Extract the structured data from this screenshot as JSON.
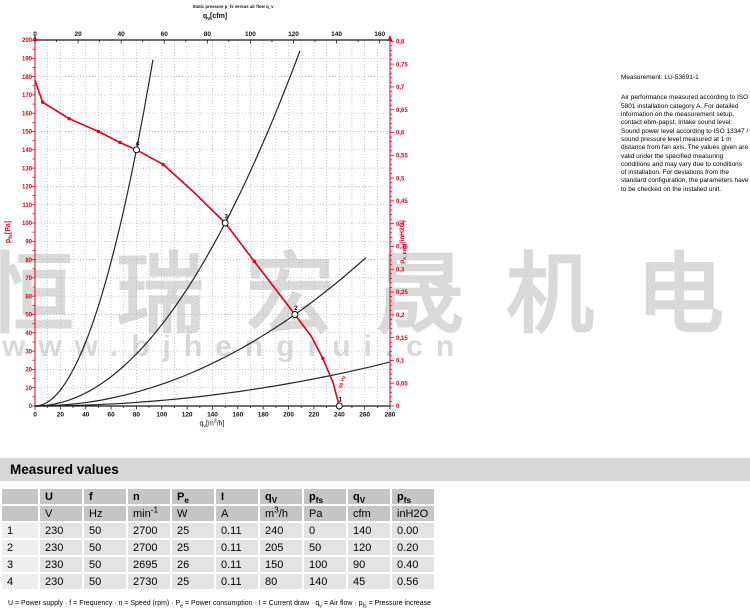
{
  "watermark": {
    "cjk": "恒瑞宏晟机电",
    "url": "www.bjhengrui.cn"
  },
  "note": {
    "title": "Measurement: LU-53691-1",
    "body": "Air performance measured according to ISO 5801 installation category A. For detailed information on the measurement setup, contact ebm-papst. Intake sound level: Sound power level according to ISO 13347 / sound pressure level measured at 1 m distance from fan axis. The values given are valid under the specified measuring conditions and may vary due to conditions of installation. For deviations from the standard configuration, the parameters have to be checked on the installed unit."
  },
  "table": {
    "title": "Measured values",
    "symbols": [
      "",
      "U",
      "f",
      "n",
      "P_{e}",
      "I",
      "q_{V}",
      "p_{fs}",
      "q_{V}",
      "p_{fs}"
    ],
    "units": [
      "",
      "V",
      "Hz",
      "min^{-1}",
      "W",
      "A",
      "m^{3}/h",
      "Pa",
      "cfm",
      "inH2O"
    ],
    "rows": [
      [
        "1",
        "230",
        "50",
        "2700",
        "25",
        "0.11",
        "240",
        "0",
        "140",
        "0.00"
      ],
      [
        "2",
        "230",
        "50",
        "2700",
        "25",
        "0.11",
        "205",
        "50",
        "120",
        "0.20"
      ],
      [
        "3",
        "230",
        "50",
        "2695",
        "26",
        "0.11",
        "150",
        "100",
        "90",
        "0.40"
      ],
      [
        "4",
        "230",
        "50",
        "2730",
        "25",
        "0.11",
        "80",
        "140",
        "45",
        "0.56"
      ]
    ]
  },
  "footnote": "U = Power supply · f = Frequency · n = Speed (rpm) · P_{e} = Power consumption · I = Current draw · q_{v} = Air flow · p_{fs} = Pressure increase",
  "chart_data": {
    "type": "line",
    "top_note": "Static pressure p_fs versus air flow q_v",
    "axes": {
      "top": {
        "label": "q_{v}[cfm]",
        "min": 0,
        "max": 160,
        "major": 20,
        "minor": 10
      },
      "bottom": {
        "label": "q_{v}[m^{3}/h]",
        "min": 0,
        "max": 280,
        "major": 20,
        "minor": 10
      },
      "left": {
        "label": "p_{fs}[Pa]",
        "min": 0,
        "max": 200,
        "major": 10,
        "minor": 5
      },
      "right": {
        "label": "p_{s_EBM}[inH2O]",
        "min": 0,
        "max": 0.8,
        "major": 0.05,
        "minor": 0.01
      }
    },
    "fan_curve": {
      "label": "50 Hz",
      "points_q_pa": [
        [
          0,
          178
        ],
        [
          6,
          166
        ],
        [
          27,
          157
        ],
        [
          50,
          150
        ],
        [
          67,
          144
        ],
        [
          80,
          140
        ],
        [
          101,
          132
        ],
        [
          125,
          117
        ],
        [
          150,
          100
        ],
        [
          173,
          79
        ],
        [
          205,
          50
        ],
        [
          218,
          38
        ],
        [
          227,
          26
        ],
        [
          235,
          13
        ],
        [
          240,
          0
        ]
      ],
      "dots_q_pa": [
        [
          6,
          166
        ],
        [
          27,
          157
        ],
        [
          50,
          150
        ],
        [
          67,
          144
        ],
        [
          101,
          132
        ],
        [
          173,
          79
        ],
        [
          227,
          26
        ]
      ]
    },
    "operating_points": [
      {
        "n": "1",
        "q": 240,
        "pa": 0
      },
      {
        "n": "2",
        "q": 205,
        "pa": 50
      },
      {
        "n": "3",
        "q": 150,
        "pa": 100
      },
      {
        "n": "4",
        "q": 80,
        "pa": 140
      }
    ],
    "system_curves": [
      {
        "q": 80,
        "pa": 140,
        "q_end": 93
      },
      {
        "q": 150,
        "pa": 100,
        "q_end": 209
      },
      {
        "q": 205,
        "pa": 50,
        "q_end": 261
      },
      {
        "q": 280,
        "pa": 24,
        "q_end": 280
      }
    ],
    "colors": {
      "curve_red": "#e2001a",
      "axis_black": "#1a1a1a",
      "grid": "#b4b4b4",
      "system_curve": "#262626"
    }
  }
}
